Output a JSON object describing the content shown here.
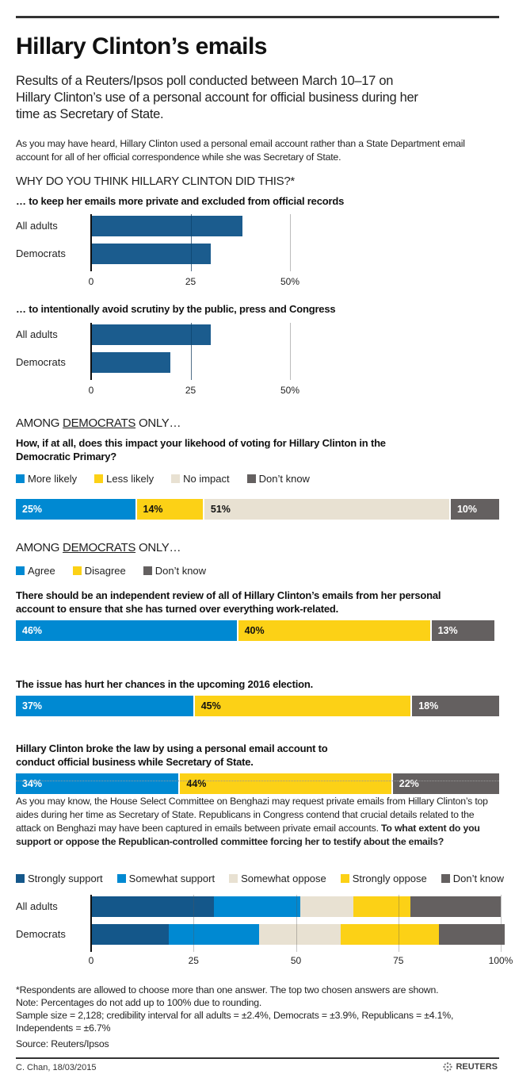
{
  "header": {
    "title": "Hillary Clinton’s emails",
    "subtitle": "Results of a Reuters/Ipsos poll conducted between March 10–17 on Hillary Clinton’s use of a personal account for official business during her time as Secretary of State.",
    "intro": "As you may have heard, Hillary Clinton used a personal email account rather than a State Department email account for all of her official correspondence while she was Secretary of State."
  },
  "section1": {
    "heading": "WHY DO YOU THINK HILLARY CLINTON DID THIS?*"
  },
  "colors": {
    "dark_blue": "#14578a",
    "blue": "#0089d2",
    "yellow": "#fcd116",
    "beige": "#e8e1d2",
    "grey": "#646060"
  },
  "chart_data": [
    {
      "type": "bar",
      "title": "… to keep her emails more private and excluded from official records",
      "categories": [
        "All adults",
        "Democrats"
      ],
      "values": [
        38,
        30
      ],
      "xlim": [
        0,
        50
      ],
      "ticks": [
        "0",
        "25",
        "50%"
      ],
      "orientation": "horizontal",
      "grid": true
    },
    {
      "type": "bar",
      "title": "… to intentionally avoid scrutiny by the public, press and Congress",
      "categories": [
        "All adults",
        "Democrats"
      ],
      "values": [
        30,
        20
      ],
      "xlim": [
        0,
        50
      ],
      "ticks": [
        "0",
        "25",
        "50%"
      ],
      "orientation": "horizontal",
      "grid": true
    },
    {
      "type": "bar",
      "stacked": true,
      "pre_title_a": "AMONG ",
      "pre_title_u": "DEMOCRATS",
      "pre_title_b": " ONLY…",
      "title": "How, if at all, does this impact your likehood of voting for Hillary Clinton in the Democratic Primary?",
      "legend": [
        "More likely",
        "Less likely",
        "No impact",
        "Don’t know"
      ],
      "series": [
        {
          "name": "More likely",
          "values": [
            25
          ],
          "label": "25%",
          "color": "#0089d2",
          "text": "#fff"
        },
        {
          "name": "Less likely",
          "values": [
            14
          ],
          "label": "14%",
          "color": "#fcd116",
          "text": "#111"
        },
        {
          "name": "No impact",
          "values": [
            51
          ],
          "label": "51%",
          "color": "#e8e1d2",
          "text": "#111"
        },
        {
          "name": "Don’t know",
          "values": [
            10
          ],
          "label": "10%",
          "color": "#646060",
          "text": "#fff"
        }
      ]
    },
    {
      "type": "bar",
      "stacked": true,
      "pre_title_a": "AMONG ",
      "pre_title_u": "DEMOCRATS",
      "pre_title_b": " ONLY…",
      "legend": [
        "Agree",
        "Disagree",
        "Don’t know"
      ],
      "legend_colors": [
        "#0089d2",
        "#fcd116",
        "#646060"
      ],
      "statements": [
        {
          "text": "There should be an independent review of all of Hillary Clinton’s emails from her personal account to ensure that she has turned over everything work-related.",
          "values": [
            46,
            40,
            13
          ],
          "labels": [
            "46%",
            "40%",
            "13%"
          ]
        },
        {
          "text": "The issue has hurt her chances in the upcoming 2016 election.",
          "values": [
            37,
            45,
            18
          ],
          "labels": [
            "37%",
            "45%",
            "18%"
          ]
        },
        {
          "text": "Hillary Clinton broke the law by using a personal email account to conduct official business while Secretary of State.",
          "values": [
            34,
            44,
            22
          ],
          "labels": [
            "34%",
            "44%",
            "22%"
          ]
        }
      ]
    },
    {
      "type": "bar",
      "stacked": true,
      "orientation": "horizontal",
      "intro": "As you may know, the House Select Committee on Benghazi may request private emails from Hillary Clinton’s top aides during her time as Secretary of State. Republicans in Congress contend that crucial details related to the attack on Benghazi may have been captured in emails between private email accounts. ",
      "title": "To what extent do you support or oppose the Republican-controlled committee forcing her to testify about the emails?",
      "categories": [
        "All adults",
        "Democrats"
      ],
      "series": [
        {
          "name": "Strongly support",
          "values": [
            30,
            19
          ],
          "color": "#14578a"
        },
        {
          "name": "Somewhat support",
          "values": [
            21,
            22
          ],
          "color": "#0089d2"
        },
        {
          "name": "Somewhat oppose",
          "values": [
            13,
            20
          ],
          "color": "#e8e1d2"
        },
        {
          "name": "Strongly oppose",
          "values": [
            14,
            24
          ],
          "color": "#fcd116"
        },
        {
          "name": "Don’t know",
          "values": [
            22,
            16
          ],
          "color": "#646060"
        }
      ],
      "xlim": [
        0,
        100
      ],
      "ticks": [
        "0",
        "25",
        "50",
        "75",
        "100%"
      ],
      "grid": true
    }
  ],
  "footer": {
    "note1": "*Respondents are allowed to choose more than one answer. The top two chosen answers are shown.",
    "note2": "Note: Percentages do not add up to 100% due to rounding.",
    "note3": "Sample size = 2,128; credibility interval for all adults = ±2.4%, Democrats = ±3.9%, Republicans = ±4.1%, Independents = ±6.7%",
    "source": "Source: Reuters/Ipsos",
    "credit": "C. Chan, 18/03/2015",
    "logo": "REUTERS"
  }
}
